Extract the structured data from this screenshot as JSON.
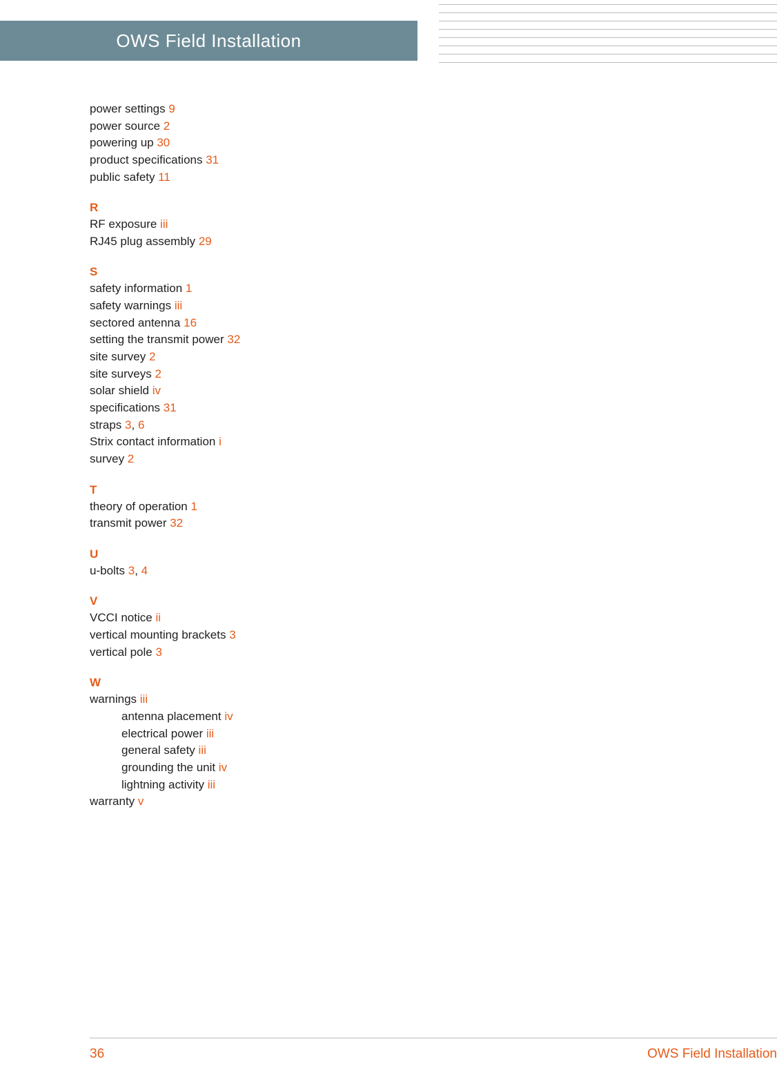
{
  "header": {
    "title": "OWS Field Installation"
  },
  "decor": {
    "line_count": 8
  },
  "index": {
    "pre": [
      {
        "text": "power settings ",
        "refs": [
          "9"
        ]
      },
      {
        "text": "power source ",
        "refs": [
          "2"
        ]
      },
      {
        "text": "powering up ",
        "refs": [
          "30"
        ]
      },
      {
        "text": "product specifications ",
        "refs": [
          "31"
        ]
      },
      {
        "text": "public safety ",
        "refs": [
          "11"
        ]
      }
    ],
    "sections": [
      {
        "letter": "R",
        "entries": [
          {
            "text": "RF exposure ",
            "refs": [
              "iii"
            ]
          },
          {
            "text": "RJ45 plug assembly ",
            "refs": [
              "29"
            ]
          }
        ]
      },
      {
        "letter": "S",
        "entries": [
          {
            "text": "safety information ",
            "refs": [
              "1"
            ]
          },
          {
            "text": "safety warnings ",
            "refs": [
              "iii"
            ]
          },
          {
            "text": "sectored antenna ",
            "refs": [
              "16"
            ]
          },
          {
            "text": "setting the transmit power ",
            "refs": [
              "32"
            ]
          },
          {
            "text": "site survey ",
            "refs": [
              "2"
            ]
          },
          {
            "text": "site surveys ",
            "refs": [
              "2"
            ]
          },
          {
            "text": "solar shield ",
            "refs": [
              "iv"
            ]
          },
          {
            "text": "specifications ",
            "refs": [
              "31"
            ]
          },
          {
            "text": "straps ",
            "refs": [
              "3",
              "6"
            ]
          },
          {
            "text": "Strix contact information ",
            "refs": [
              "i"
            ]
          },
          {
            "text": "survey ",
            "refs": [
              "2"
            ]
          }
        ]
      },
      {
        "letter": "T",
        "entries": [
          {
            "text": "theory of operation ",
            "refs": [
              "1"
            ]
          },
          {
            "text": "transmit power ",
            "refs": [
              "32"
            ]
          }
        ]
      },
      {
        "letter": "U",
        "entries": [
          {
            "text": "u-bolts ",
            "refs": [
              "3",
              "4"
            ]
          }
        ]
      },
      {
        "letter": "V",
        "entries": [
          {
            "text": "VCCI notice ",
            "refs": [
              "ii"
            ]
          },
          {
            "text": "vertical mounting brackets ",
            "refs": [
              "3"
            ]
          },
          {
            "text": "vertical pole ",
            "refs": [
              "3"
            ]
          }
        ]
      },
      {
        "letter": "W",
        "entries": [
          {
            "text": "warnings ",
            "refs": [
              "iii"
            ]
          },
          {
            "text": "antenna placement ",
            "refs": [
              "iv"
            ],
            "sub": true
          },
          {
            "text": "electrical power ",
            "refs": [
              "iii"
            ],
            "sub": true
          },
          {
            "text": "general safety ",
            "refs": [
              "iii"
            ],
            "sub": true
          },
          {
            "text": "grounding the unit ",
            "refs": [
              "iv"
            ],
            "sub": true
          },
          {
            "text": "lightning activity ",
            "refs": [
              "iii"
            ],
            "sub": true
          },
          {
            "text": "warranty ",
            "refs": [
              "v"
            ]
          }
        ]
      }
    ]
  },
  "footer": {
    "page": "36",
    "title": "OWS Field Installation"
  },
  "colors": {
    "header_bg": "#6d8b96",
    "header_text": "#ffffff",
    "accent": "#e45c1a",
    "body_text": "#1f1f1f",
    "rule": "#bcbcbc"
  },
  "typography": {
    "header_fontsize": 26,
    "section_letter_fontsize": 17,
    "entry_fontsize": 17,
    "footer_fontsize": 19
  }
}
